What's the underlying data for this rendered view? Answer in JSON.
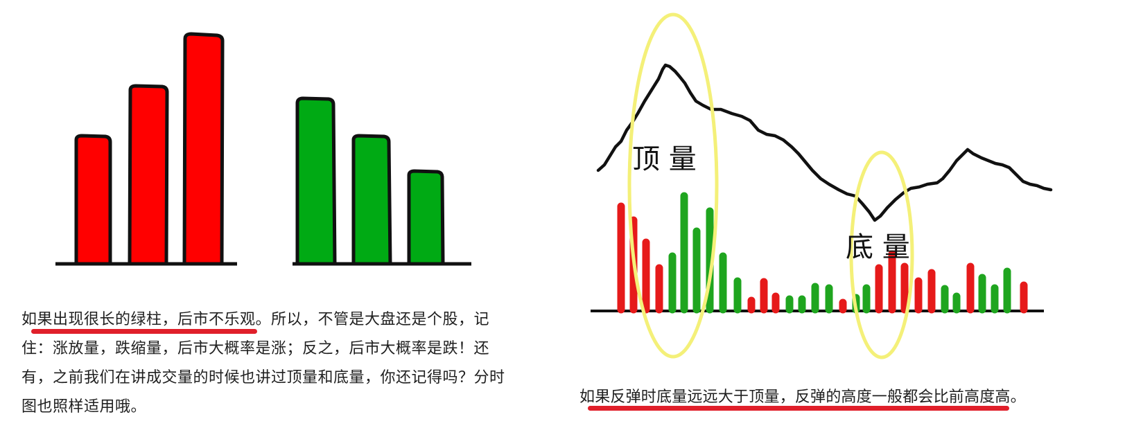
{
  "left": {
    "paragraph": {
      "highlight": "如果出现很长的绿柱，后市不乐观",
      "rest": "。所以，不管是大盘还是个股，记住：涨放量，跌缩量，后市大概率是涨；反之，后市大概率是跌！还有，之前我们在讲成交量的时候也讲过顶量和底量，你还记得吗？分时图也照样适用哦。"
    },
    "colors": {
      "up": "#ff0000",
      "down": "#00aa14",
      "outline": "#111111",
      "underline": "#e01f2a"
    }
  },
  "right": {
    "labels": {
      "top_volume": "顶 量",
      "bottom_volume": "底 量"
    },
    "caption": "如果反弹时底量远远大于顶量，反弹的高度一般都会比前高度高。",
    "colors": {
      "up": "#e61a1a",
      "down": "#1fa51f",
      "circle": "#f4f079",
      "line": "#111111"
    }
  }
}
